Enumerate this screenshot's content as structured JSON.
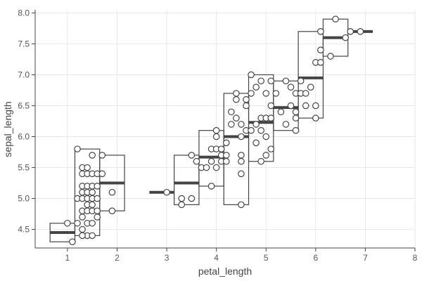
{
  "chart_data": {
    "type": "box-with-points",
    "title": "",
    "xlabel": "petal_length",
    "ylabel": "sepal_length",
    "xlim": [
      0.35,
      8
    ],
    "ylim": [
      4.2,
      8.05
    ],
    "x_ticks": [
      1,
      2,
      3,
      4,
      5,
      6,
      7,
      8
    ],
    "y_ticks": [
      4.5,
      5.0,
      5.5,
      6.0,
      6.5,
      7.0,
      7.5,
      8.0
    ],
    "y_tick_labels": [
      "4.5",
      "5.0",
      "5.5",
      "6.0",
      "6.5",
      "7.0",
      "7.5",
      "8.0"
    ],
    "grid": true,
    "boxes": [
      {
        "x0": 0.65,
        "x1": 1.15,
        "q1": 4.3,
        "median": 4.45,
        "q3": 4.6
      },
      {
        "x0": 1.15,
        "x1": 1.65,
        "q1": 4.4,
        "median": 5.0,
        "q3": 5.8
      },
      {
        "x0": 1.65,
        "x1": 2.15,
        "q1": 4.8,
        "median": 5.25,
        "q3": 5.7
      },
      {
        "x0": 2.65,
        "x1": 3.15,
        "q1": 5.1,
        "median": 5.1,
        "q3": 5.1
      },
      {
        "x0": 3.15,
        "x1": 3.65,
        "q1": 4.9,
        "median": 5.25,
        "q3": 5.7
      },
      {
        "x0": 3.65,
        "x1": 4.15,
        "q1": 5.2,
        "median": 5.67,
        "q3": 6.1
      },
      {
        "x0": 4.15,
        "x1": 4.65,
        "q1": 4.9,
        "median": 6.0,
        "q3": 6.7
      },
      {
        "x0": 4.65,
        "x1": 5.15,
        "q1": 5.6,
        "median": 6.23,
        "q3": 7.0
      },
      {
        "x0": 5.15,
        "x1": 5.65,
        "q1": 6.1,
        "median": 6.47,
        "q3": 6.9
      },
      {
        "x0": 5.65,
        "x1": 6.15,
        "q1": 6.3,
        "median": 6.95,
        "q3": 7.7
      },
      {
        "x0": 6.15,
        "x1": 6.65,
        "q1": 7.3,
        "median": 7.6,
        "q3": 7.9
      },
      {
        "x0": 6.65,
        "x1": 7.15,
        "q1": 7.7,
        "median": 7.7,
        "q3": 7.7
      }
    ],
    "points": [
      [
        1.1,
        4.3
      ],
      [
        1.0,
        4.6
      ],
      [
        1.2,
        5.8
      ],
      [
        1.3,
        5.5
      ],
      [
        1.4,
        5.5
      ],
      [
        1.3,
        5.4
      ],
      [
        1.4,
        5.4
      ],
      [
        1.5,
        5.4
      ],
      [
        1.3,
        5.2
      ],
      [
        1.4,
        5.2
      ],
      [
        1.5,
        5.2
      ],
      [
        1.3,
        5.1
      ],
      [
        1.4,
        5.1
      ],
      [
        1.5,
        5.1
      ],
      [
        1.2,
        5.0
      ],
      [
        1.3,
        5.0
      ],
      [
        1.4,
        5.0
      ],
      [
        1.5,
        5.0
      ],
      [
        1.4,
        4.9
      ],
      [
        1.5,
        4.9
      ],
      [
        1.3,
        4.8
      ],
      [
        1.4,
        4.8
      ],
      [
        1.5,
        4.8
      ],
      [
        1.3,
        4.7
      ],
      [
        1.4,
        4.6
      ],
      [
        1.5,
        4.6
      ],
      [
        1.3,
        4.5
      ],
      [
        1.4,
        4.4
      ],
      [
        1.3,
        4.4
      ],
      [
        1.5,
        4.4
      ],
      [
        1.2,
        4.6
      ],
      [
        1.6,
        5.0
      ],
      [
        1.6,
        4.8
      ],
      [
        1.6,
        4.7
      ],
      [
        1.6,
        5.2
      ],
      [
        1.6,
        5.4
      ],
      [
        1.5,
        5.7
      ],
      [
        1.7,
        5.7
      ],
      [
        1.7,
        5.4
      ],
      [
        1.9,
        5.1
      ],
      [
        1.9,
        4.8
      ],
      [
        3.0,
        5.1
      ],
      [
        3.3,
        4.9
      ],
      [
        3.3,
        5.0
      ],
      [
        3.5,
        5.0
      ],
      [
        3.5,
        5.7
      ],
      [
        3.6,
        5.6
      ],
      [
        3.7,
        5.5
      ],
      [
        3.8,
        5.5
      ],
      [
        3.9,
        5.6
      ],
      [
        3.9,
        5.8
      ],
      [
        3.9,
        5.2
      ],
      [
        4.0,
        5.5
      ],
      [
        4.0,
        5.8
      ],
      [
        4.0,
        6.0
      ],
      [
        4.0,
        6.1
      ],
      [
        4.1,
        5.6
      ],
      [
        4.1,
        5.7
      ],
      [
        4.1,
        5.8
      ],
      [
        4.2,
        5.6
      ],
      [
        4.2,
        5.7
      ],
      [
        4.2,
        5.9
      ],
      [
        4.3,
        6.2
      ],
      [
        4.3,
        6.4
      ],
      [
        4.4,
        6.7
      ],
      [
        4.4,
        6.6
      ],
      [
        4.4,
        6.3
      ],
      [
        4.5,
        6.0
      ],
      [
        4.5,
        6.2
      ],
      [
        4.5,
        5.7
      ],
      [
        4.5,
        5.6
      ],
      [
        4.5,
        5.4
      ],
      [
        4.5,
        4.9
      ],
      [
        4.6,
        6.5
      ],
      [
        4.6,
        6.6
      ],
      [
        4.6,
        6.1
      ],
      [
        4.7,
        6.1
      ],
      [
        4.7,
        6.7
      ],
      [
        4.7,
        7.0
      ],
      [
        4.8,
        6.8
      ],
      [
        4.8,
        6.2
      ],
      [
        4.8,
        5.9
      ],
      [
        4.9,
        6.3
      ],
      [
        4.9,
        6.1
      ],
      [
        4.9,
        5.6
      ],
      [
        4.9,
        6.9
      ],
      [
        5.0,
        6.7
      ],
      [
        5.0,
        6.3
      ],
      [
        5.0,
        6.0
      ],
      [
        5.0,
        5.7
      ],
      [
        5.1,
        5.8
      ],
      [
        5.1,
        6.3
      ],
      [
        5.1,
        6.9
      ],
      [
        5.1,
        6.5
      ],
      [
        5.2,
        6.7
      ],
      [
        5.3,
        6.4
      ],
      [
        5.4,
        6.2
      ],
      [
        5.4,
        6.9
      ],
      [
        5.5,
        6.5
      ],
      [
        5.5,
        6.8
      ],
      [
        5.6,
        6.3
      ],
      [
        5.6,
        6.4
      ],
      [
        5.6,
        6.7
      ],
      [
        5.6,
        6.1
      ],
      [
        5.7,
        6.7
      ],
      [
        5.7,
        6.9
      ],
      [
        5.8,
        6.5
      ],
      [
        5.8,
        6.7
      ],
      [
        5.9,
        6.8
      ],
      [
        6.0,
        6.3
      ],
      [
        6.0,
        6.5
      ],
      [
        6.0,
        7.2
      ],
      [
        6.1,
        7.7
      ],
      [
        6.1,
        7.2
      ],
      [
        6.1,
        7.4
      ],
      [
        6.3,
        7.3
      ],
      [
        6.4,
        7.9
      ],
      [
        6.6,
        7.6
      ],
      [
        6.7,
        7.7
      ],
      [
        6.9,
        7.7
      ]
    ]
  }
}
